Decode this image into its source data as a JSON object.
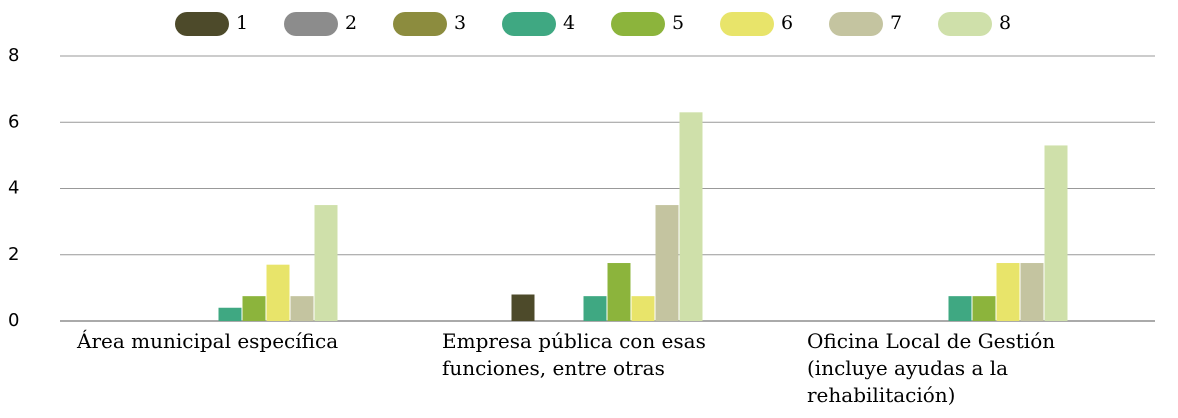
{
  "chart_data": {
    "type": "bar",
    "categories": [
      "Área municipal específica",
      "Empresa pública con esas funciones, entre otras",
      "Oficina Local de Gestión (incluye ayudas a la rehabilitación)"
    ],
    "series": [
      {
        "name": "1",
        "color": "#4d4a2a",
        "values": [
          0,
          0.8,
          0
        ]
      },
      {
        "name": "2",
        "color": "#8c8c8c",
        "values": [
          0,
          0,
          0
        ]
      },
      {
        "name": "3",
        "color": "#8c8c3e",
        "values": [
          0,
          0,
          0
        ]
      },
      {
        "name": "4",
        "color": "#3fa882",
        "values": [
          0.4,
          0.75,
          0.75
        ]
      },
      {
        "name": "5",
        "color": "#8cb43c",
        "values": [
          0.75,
          1.75,
          0.75
        ]
      },
      {
        "name": "6",
        "color": "#e8e46a",
        "values": [
          1.7,
          0.75,
          1.75
        ]
      },
      {
        "name": "7",
        "color": "#c4c4a0",
        "values": [
          0.75,
          3.5,
          1.75
        ]
      },
      {
        "name": "8",
        "color": "#cfe0aa",
        "values": [
          3.5,
          6.3,
          5.3
        ]
      }
    ],
    "ylim": [
      0,
      8
    ],
    "yticks": [
      0,
      2,
      4,
      6,
      8
    ],
    "grid": true,
    "legend": "top"
  }
}
